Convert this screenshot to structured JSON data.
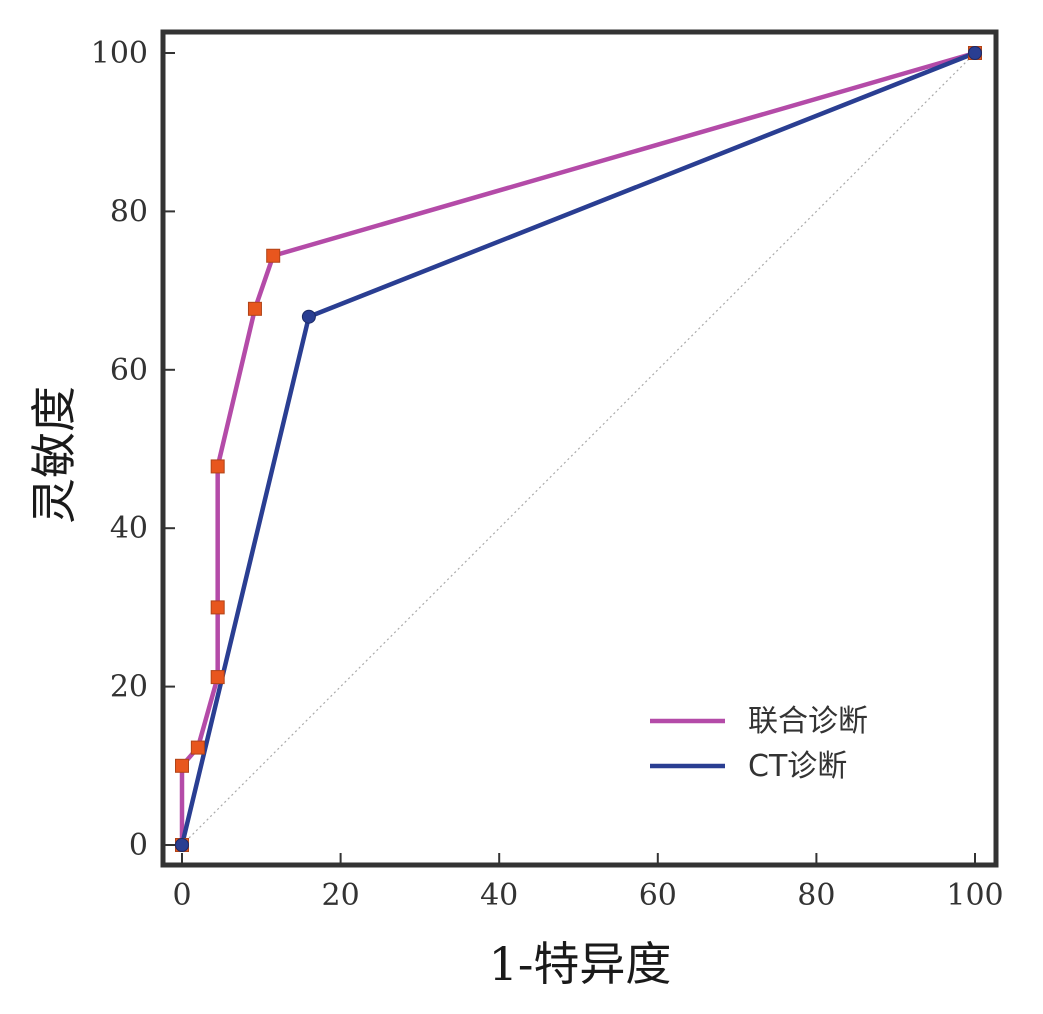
{
  "chart_data": {
    "type": "line",
    "xlabel": "1-特异度",
    "ylabel": "灵敏度",
    "xlim": [
      0,
      100
    ],
    "ylim": [
      0,
      100
    ],
    "xticks": [
      0,
      20,
      40,
      60,
      80,
      100
    ],
    "yticks": [
      0,
      20,
      40,
      60,
      80,
      100
    ],
    "grid": false,
    "legend_position": "bottom-right",
    "reference_line": {
      "x": [
        0,
        100
      ],
      "y": [
        0,
        100
      ],
      "style": "dotted",
      "color": "#aaaaaa"
    },
    "series": [
      {
        "name": "联合诊断",
        "color": "#b44ba8",
        "marker": "square",
        "marker_color": "#e8561e",
        "x": [
          0,
          0,
          2,
          4.5,
          4.5,
          4.5,
          9.2,
          11.5,
          100
        ],
        "y": [
          0,
          10,
          12.3,
          21.2,
          30,
          47.8,
          67.7,
          74.4,
          100
        ]
      },
      {
        "name": "CT诊断",
        "color": "#2a3e92",
        "marker": "circle",
        "marker_color": "#2a3e92",
        "x": [
          0,
          16,
          100
        ],
        "y": [
          0,
          66.7,
          100
        ]
      }
    ]
  }
}
